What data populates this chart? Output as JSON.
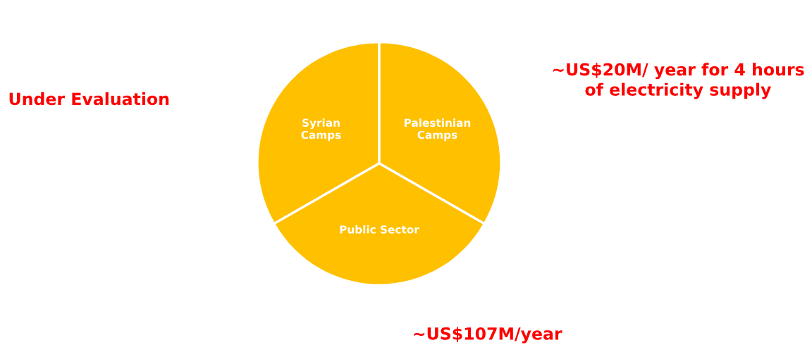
{
  "chart_data": {
    "type": "pie",
    "categories": [
      "Syrian\nCamps",
      "Public Sector",
      "Palestinian\nCamps"
    ],
    "values": [
      33.3,
      33.4,
      33.3
    ],
    "colors": [
      "#ffc000",
      "#ffc000",
      "#ffc000"
    ],
    "annotations": [
      "Under Evaluation",
      "~US$20M/ year for 4 hours\nof electricity supply",
      "~US$107M/year"
    ],
    "legend": false
  }
}
